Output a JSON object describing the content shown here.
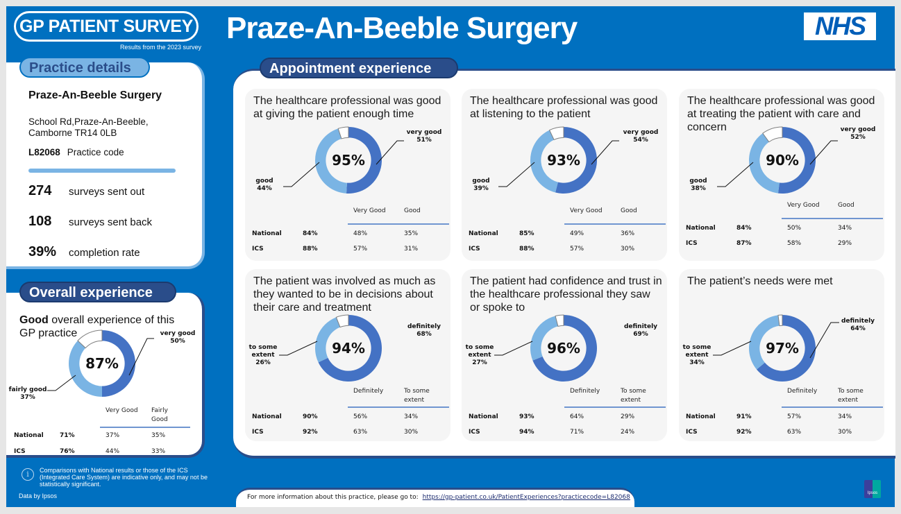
{
  "header": {
    "brand": "GP PATIENT SURVEY",
    "brand_sub": "Results from the 2023 survey",
    "title": "Praze-An-Beeble Surgery",
    "nhs_logo": "NHS"
  },
  "practice": {
    "section_label": "Practice details",
    "name": "Praze-An-Beeble Surgery",
    "address_line1": "School Rd,Praze-An-Beeble,",
    "address_line2": "Camborne TR14 0LB",
    "code": "L82068",
    "code_label": "Practice code",
    "stats": [
      {
        "value": "274",
        "label": "surveys sent out"
      },
      {
        "value": "108",
        "label": "surveys sent back"
      },
      {
        "value": "39%",
        "label": "completion rate"
      }
    ]
  },
  "overall": {
    "section_label": "Overall experience",
    "question_bold": "Good",
    "question_rest": " overall experience of this GP practice",
    "total": "87%",
    "seg1_label": "very good",
    "seg1_value": "50%",
    "seg2_label": "fairly good",
    "seg2_value": "37%",
    "col1": "Very Good",
    "col2": "Fairly Good",
    "rows": [
      {
        "label": "National",
        "total": "71%",
        "c1": "37%",
        "c2": "35%"
      },
      {
        "label": "ICS",
        "total": "76%",
        "c1": "44%",
        "c2": "33%"
      }
    ]
  },
  "appointment": {
    "section_label": "Appointment experience",
    "cards": [
      {
        "question": "The healthcare professional was good at giving the patient enough time",
        "total": "95%",
        "seg1_label": "very good",
        "seg1_value": "51%",
        "seg2_label": "good",
        "seg2_value": "44%",
        "col1": "Very Good",
        "col2": "Good",
        "rows": [
          {
            "label": "National",
            "total": "84%",
            "c1": "48%",
            "c2": "35%"
          },
          {
            "label": "ICS",
            "total": "88%",
            "c1": "57%",
            "c2": "31%"
          }
        ]
      },
      {
        "question": "The healthcare professional was good at listening to the patient",
        "total": "93%",
        "seg1_label": "very good",
        "seg1_value": "54%",
        "seg2_label": "good",
        "seg2_value": "39%",
        "col1": "Very Good",
        "col2": "Good",
        "rows": [
          {
            "label": "National",
            "total": "85%",
            "c1": "49%",
            "c2": "36%"
          },
          {
            "label": "ICS",
            "total": "88%",
            "c1": "57%",
            "c2": "30%"
          }
        ]
      },
      {
        "question": "The healthcare professional was good at treating the patient with care and concern",
        "total": "90%",
        "seg1_label": "very good",
        "seg1_value": "52%",
        "seg2_label": "good",
        "seg2_value": "38%",
        "col1": "Very Good",
        "col2": "Good",
        "rows": [
          {
            "label": "National",
            "total": "84%",
            "c1": "50%",
            "c2": "34%"
          },
          {
            "label": "ICS",
            "total": "87%",
            "c1": "58%",
            "c2": "29%"
          }
        ]
      },
      {
        "question": "The patient was involved as much as they wanted to be in decisions about their care and treatment",
        "total": "94%",
        "seg1_label": "definitely",
        "seg1_value": "68%",
        "seg2_label": "to some extent",
        "seg2_value": "26%",
        "col1": "Definitely",
        "col2": "To some extent",
        "rows": [
          {
            "label": "National",
            "total": "90%",
            "c1": "56%",
            "c2": "34%"
          },
          {
            "label": "ICS",
            "total": "92%",
            "c1": "63%",
            "c2": "30%"
          }
        ]
      },
      {
        "question": "The patient had confidence and trust in the healthcare professional they saw or spoke to",
        "total": "96%",
        "seg1_label": "definitely",
        "seg1_value": "69%",
        "seg2_label": "to some extent",
        "seg2_value": "27%",
        "col1": "Definitely",
        "col2": "To some extent",
        "rows": [
          {
            "label": "National",
            "total": "93%",
            "c1": "64%",
            "c2": "29%"
          },
          {
            "label": "ICS",
            "total": "94%",
            "c1": "71%",
            "c2": "24%"
          }
        ]
      },
      {
        "question": "The patient’s needs were met",
        "total": "97%",
        "seg1_label": "definitely",
        "seg1_value": "64%",
        "seg2_label": "to some extent",
        "seg2_value": "34%",
        "col1": "Definitely",
        "col2": "To some extent",
        "rows": [
          {
            "label": "National",
            "total": "91%",
            "c1": "57%",
            "c2": "34%"
          },
          {
            "label": "ICS",
            "total": "92%",
            "c1": "63%",
            "c2": "30%"
          }
        ]
      }
    ]
  },
  "footer": {
    "info_text": "Comparisons with National results or those of the ICS (Integrated Care System) are indicative only, and may not be statistically significant.",
    "data_by": "Data by Ipsos",
    "more_info": "For more information about this practice, please go to:",
    "link": "https://gp-patient.co.uk/PatientExperiences?practicecode=L82068",
    "ipsos_logo": "Ipsos"
  },
  "colors": {
    "primary_blue": "#0070c0",
    "dark_blue": "#2a4d8a",
    "seg_dark": "#4472c4",
    "seg_light": "#7ab4e4"
  },
  "chart_data": [
    {
      "type": "pie",
      "title": "Good overall experience of this GP practice",
      "categories": [
        "very good",
        "fairly good",
        "other"
      ],
      "values": [
        50,
        37,
        13
      ]
    },
    {
      "type": "pie",
      "title": "The healthcare professional was good at giving the patient enough time",
      "categories": [
        "very good",
        "good",
        "other"
      ],
      "values": [
        51,
        44,
        5
      ]
    },
    {
      "type": "pie",
      "title": "The healthcare professional was good at listening to the patient",
      "categories": [
        "very good",
        "good",
        "other"
      ],
      "values": [
        54,
        39,
        7
      ]
    },
    {
      "type": "pie",
      "title": "The healthcare professional was good at treating the patient with care and concern",
      "categories": [
        "very good",
        "good",
        "other"
      ],
      "values": [
        52,
        38,
        10
      ]
    },
    {
      "type": "pie",
      "title": "The patient was involved as much as they wanted to be in decisions about their care and treatment",
      "categories": [
        "definitely",
        "to some extent",
        "other"
      ],
      "values": [
        68,
        26,
        6
      ]
    },
    {
      "type": "pie",
      "title": "The patient had confidence and trust in the healthcare professional they saw or spoke to",
      "categories": [
        "definitely",
        "to some extent",
        "other"
      ],
      "values": [
        69,
        27,
        4
      ]
    },
    {
      "type": "pie",
      "title": "The patient’s needs were met",
      "categories": [
        "definitely",
        "to some extent",
        "other"
      ],
      "values": [
        64,
        34,
        2
      ]
    }
  ]
}
